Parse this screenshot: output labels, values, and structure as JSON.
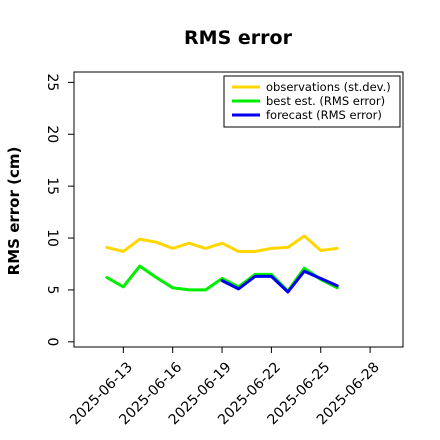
{
  "chart_data": {
    "type": "line",
    "title": "RMS error",
    "xlabel": "",
    "ylabel": "RMS error (cm)",
    "xlim": [
      "2025-06-10",
      "2025-06-30"
    ],
    "ylim": [
      -0.5,
      26
    ],
    "yticks": [
      0,
      5,
      10,
      15,
      20,
      25
    ],
    "xticks": [
      "2025-06-13",
      "2025-06-16",
      "2025-06-19",
      "2025-06-22",
      "2025-06-25",
      "2025-06-28"
    ],
    "highlighted_tick": "2025-06-19",
    "highlight_color": "#228B22",
    "grid": false,
    "legend_position": "top-right",
    "series": [
      {
        "name": "observations (st.dev.)",
        "color": "#FFD700",
        "x": [
          "2025-06-12",
          "2025-06-13",
          "2025-06-14",
          "2025-06-15",
          "2025-06-16",
          "2025-06-17",
          "2025-06-18",
          "2025-06-19",
          "2025-06-20",
          "2025-06-21",
          "2025-06-22",
          "2025-06-23",
          "2025-06-24",
          "2025-06-25",
          "2025-06-26"
        ],
        "values": [
          9.1,
          8.7,
          9.9,
          9.6,
          9.0,
          9.5,
          9.0,
          9.5,
          8.7,
          8.7,
          9.0,
          9.1,
          10.2,
          8.8,
          9.0
        ]
      },
      {
        "name": "best est. (RMS error)",
        "color": "#00EE00",
        "x": [
          "2025-06-12",
          "2025-06-13",
          "2025-06-14",
          "2025-06-15",
          "2025-06-16",
          "2025-06-17",
          "2025-06-18",
          "2025-06-19",
          "2025-06-20",
          "2025-06-21",
          "2025-06-22",
          "2025-06-23",
          "2025-06-24",
          "2025-06-25",
          "2025-06-26"
        ],
        "values": [
          6.2,
          5.3,
          7.3,
          6.2,
          5.2,
          5.0,
          5.0,
          6.1,
          5.3,
          6.5,
          6.5,
          4.9,
          7.1,
          6.0,
          5.2
        ]
      },
      {
        "name": "forecast (RMS error)",
        "color": "#0000EE",
        "x": [
          "2025-06-19",
          "2025-06-20",
          "2025-06-21",
          "2025-06-22",
          "2025-06-23",
          "2025-06-24",
          "2025-06-25",
          "2025-06-26"
        ],
        "values": [
          5.9,
          5.1,
          6.3,
          6.3,
          4.8,
          6.8,
          6.1,
          5.4
        ]
      }
    ]
  }
}
